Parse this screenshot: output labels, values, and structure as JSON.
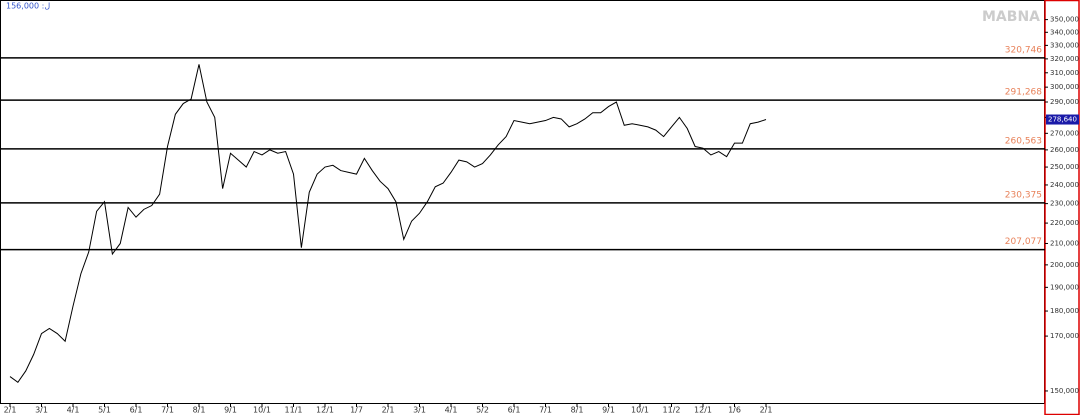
{
  "chart_data": {
    "type": "line",
    "corner_label": "156,000 :ﻝ",
    "watermark": "MABNA",
    "log_scale": true,
    "ylim": [
      145600,
      366000
    ],
    "yticks": [
      {
        "value": 150000,
        "label": "150,000"
      },
      {
        "value": 170000,
        "label": "170,000"
      },
      {
        "value": 180000,
        "label": "180,000"
      },
      {
        "value": 190000,
        "label": "190,000"
      },
      {
        "value": 200000,
        "label": "200,000"
      },
      {
        "value": 210000,
        "label": "210,000"
      },
      {
        "value": 220000,
        "label": "220,000"
      },
      {
        "value": 230000,
        "label": "230,000"
      },
      {
        "value": 240000,
        "label": "240,000"
      },
      {
        "value": 250000,
        "label": "250,000"
      },
      {
        "value": 260000,
        "label": "260,000"
      },
      {
        "value": 270000,
        "label": "270,000"
      },
      {
        "value": 280000,
        "label": "280,000"
      },
      {
        "value": 290000,
        "label": "290,000"
      },
      {
        "value": 300000,
        "label": "300,000"
      },
      {
        "value": 310000,
        "label": "310,000"
      },
      {
        "value": 320000,
        "label": "320,000"
      },
      {
        "value": 330000,
        "label": "330,000"
      },
      {
        "value": 340000,
        "label": "340,000"
      },
      {
        "value": 350000,
        "label": "350,000"
      }
    ],
    "levels": [
      {
        "value": 320746,
        "label": "320,746"
      },
      {
        "value": 291268,
        "label": "291,268"
      },
      {
        "value": 260563,
        "label": "260,563"
      },
      {
        "value": 230375,
        "label": "230,375"
      },
      {
        "value": 207077,
        "label": "207,077"
      }
    ],
    "level_color": "#000000",
    "level_label_color": "#e8825a",
    "last_price": {
      "value": 278640,
      "label": "278,640"
    },
    "last_price_color": "#1a1aa8",
    "categories": [
      "2/1",
      null,
      null,
      null,
      "3/1",
      null,
      null,
      null,
      "4/1",
      null,
      null,
      null,
      "5/1",
      null,
      null,
      null,
      "6/1",
      null,
      null,
      null,
      "7/1",
      null,
      null,
      null,
      "8/1",
      null,
      null,
      null,
      "9/1",
      null,
      null,
      null,
      "10/1",
      null,
      null,
      null,
      "11/1",
      null,
      null,
      null,
      "12/1",
      null,
      null,
      null,
      "1/7",
      null,
      null,
      null,
      "2/1",
      null,
      null,
      null,
      "3/1",
      null,
      null,
      null,
      "4/1",
      null,
      null,
      null,
      "5/2",
      null,
      null,
      null,
      "6/1",
      null,
      null,
      null,
      "7/1",
      null,
      null,
      null,
      "8/1",
      null,
      null,
      null,
      "9/1",
      null,
      null,
      null,
      "10/1",
      null,
      null,
      null,
      "11/2",
      null,
      null,
      null,
      "12/1",
      null,
      null,
      null,
      "1/6",
      null,
      null,
      null,
      "2/1"
    ],
    "series": [
      {
        "color": "#000000",
        "values": [
          155000,
          153000,
          157000,
          163000,
          171000,
          173000,
          171000,
          168000,
          182000,
          196000,
          206000,
          226000,
          231000,
          205000,
          210000,
          228000,
          223000,
          227000,
          229000,
          235000,
          262000,
          282000,
          289000,
          292000,
          316000,
          290000,
          280000,
          238000,
          258000,
          254000,
          250000,
          259000,
          257000,
          260000,
          258000,
          259000,
          246000,
          208000,
          236000,
          246000,
          250000,
          251000,
          248000,
          247000,
          246000,
          255000,
          248000,
          242000,
          238000,
          231000,
          212000,
          221000,
          225000,
          231000,
          239000,
          241000,
          247000,
          254000,
          253000,
          250000,
          252000,
          257000,
          263000,
          268000,
          278000,
          277000,
          276000,
          277000,
          278000,
          280000,
          279000,
          274000,
          276000,
          279000,
          283000,
          283000,
          287000,
          290000,
          275000,
          276000,
          275000,
          274000,
          272000,
          268000,
          274000,
          280000,
          273000,
          262000,
          261000,
          257000,
          259000,
          256000,
          264000,
          264000,
          276000,
          277000,
          278640
        ]
      }
    ]
  }
}
